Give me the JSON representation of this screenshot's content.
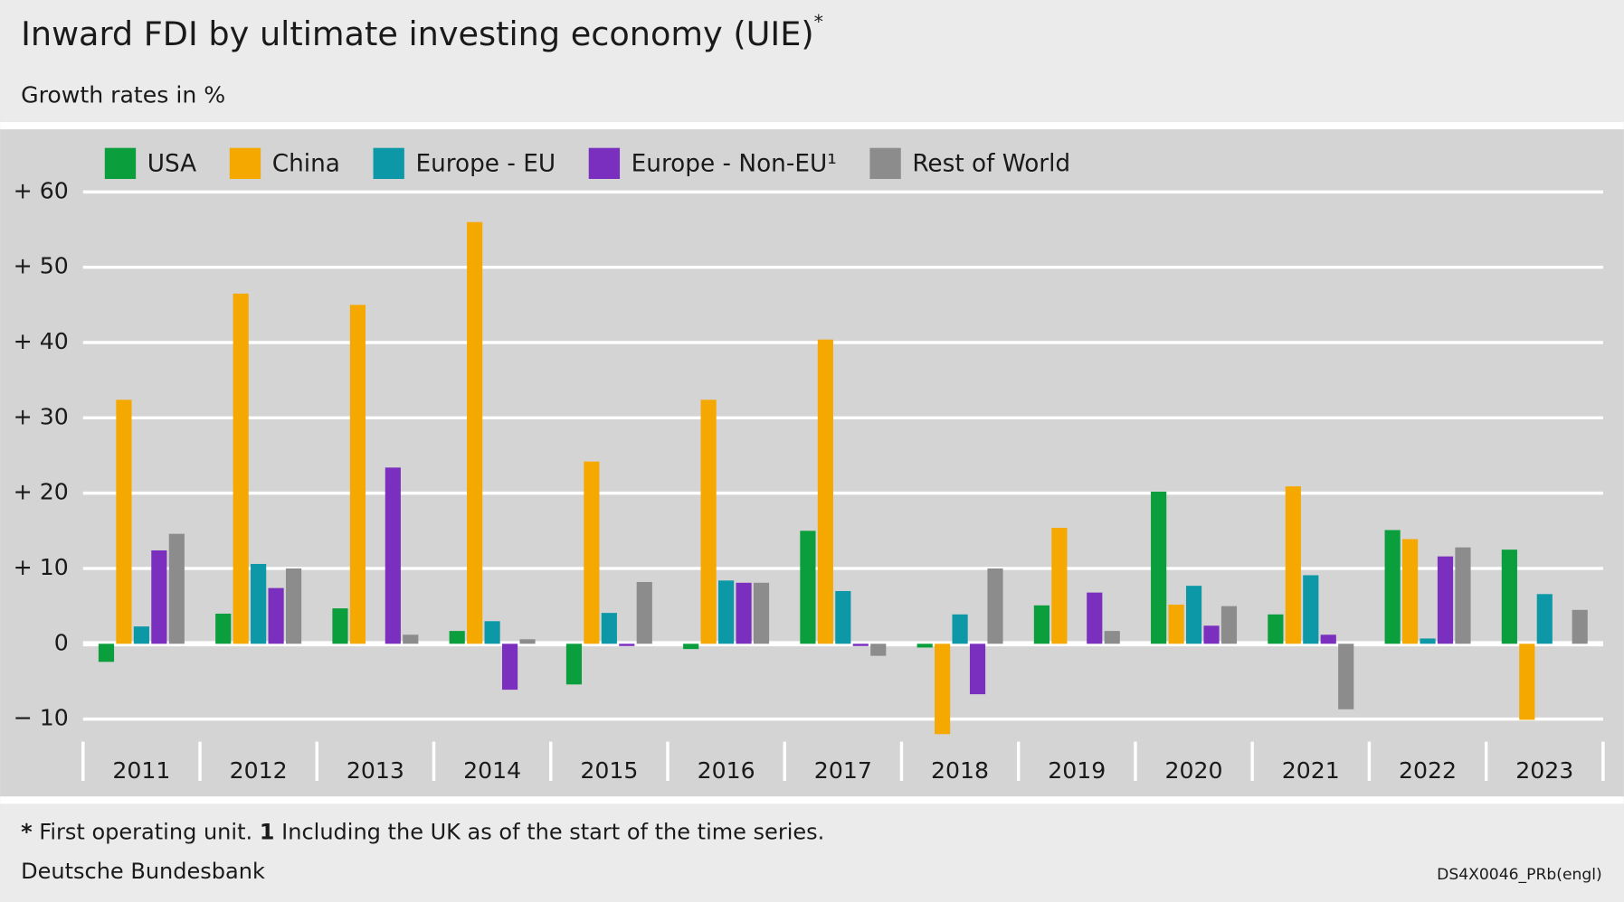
{
  "chart_data": {
    "type": "bar",
    "title": "Inward FDI by ultimate investing economy (UIE)",
    "title_mark": "*",
    "subtitle": "Growth rates in %",
    "categories": [
      "2011",
      "2012",
      "2013",
      "2014",
      "2015",
      "2016",
      "2017",
      "2018",
      "2019",
      "2020",
      "2021",
      "2022",
      "2023"
    ],
    "series": [
      {
        "name": "USA",
        "color": "#0a9e3c",
        "values": [
          -2.4,
          4.0,
          4.7,
          1.7,
          -5.4,
          -0.7,
          15.0,
          -0.5,
          5.1,
          20.2,
          3.9,
          15.1,
          12.5
        ]
      },
      {
        "name": "China",
        "color": "#f5a800",
        "values": [
          32.4,
          46.5,
          45.0,
          56.0,
          24.2,
          32.4,
          40.4,
          -12.0,
          15.4,
          5.2,
          20.9,
          13.9,
          -10.1
        ]
      },
      {
        "name": "Europe - EU",
        "color": "#0d98a8",
        "values": [
          2.3,
          10.6,
          0,
          3.0,
          4.1,
          8.4,
          7.0,
          3.9,
          0,
          7.7,
          9.1,
          0.7,
          6.6
        ]
      },
      {
        "name": "Europe - Non-EU¹",
        "color": "#7b2fbf",
        "values": [
          12.4,
          7.4,
          23.4,
          -6.1,
          -0.3,
          8.1,
          -0.3,
          -6.7,
          6.8,
          2.4,
          1.2,
          11.6,
          0
        ]
      },
      {
        "name": "Rest of World",
        "color": "#8c8c8c",
        "values": [
          14.6,
          10.0,
          1.2,
          0.6,
          8.2,
          8.1,
          -1.6,
          10.0,
          1.7,
          5.0,
          -8.7,
          12.8,
          4.5
        ]
      }
    ],
    "ylim": [
      -13,
      62
    ],
    "yticks": [
      {
        "value": -10,
        "label": "− 10"
      },
      0,
      {
        "value": 10,
        "label": "+ 10"
      },
      {
        "value": 20,
        "label": "+ 20"
      },
      {
        "value": 30,
        "label": "+ 30"
      },
      {
        "value": 40,
        "label": "+ 40"
      },
      {
        "value": 50,
        "label": "+ 50"
      },
      {
        "value": 60,
        "label": "+ 60"
      }
    ],
    "grid": true,
    "legend": "top",
    "footnote": {
      "star": "*",
      "star_text": "First operating unit.",
      "one": "1",
      "one_text": "Including the UK as of the start of the time series."
    },
    "source": "Deutsche Bundesbank",
    "code": "DS4X0046_PRb(engl)"
  }
}
